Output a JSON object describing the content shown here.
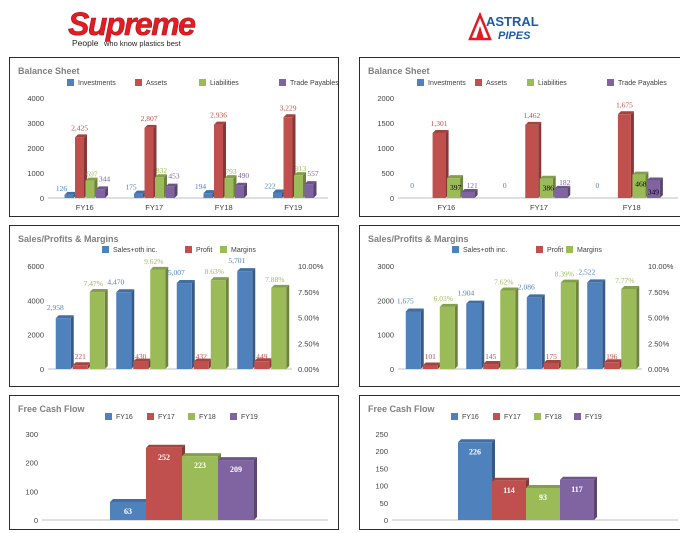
{
  "logos": {
    "supreme": {
      "name": "Supreme",
      "tagline_left": "People",
      "tagline_right": "who know plastics best",
      "color": "#e31b23"
    },
    "astral": {
      "line1": "ASTRAL",
      "line2": "PIPES",
      "color": "#1e5aa8",
      "accent": "#e31b23"
    }
  },
  "colors": {
    "blue": "#4f81bd",
    "red": "#c0504d",
    "green": "#9bbb59",
    "purple": "#8064a2",
    "title": "#7f7f7f"
  },
  "chart_data": [
    {
      "id": "supreme-balance",
      "type": "bar",
      "title": "Balance Sheet",
      "categories": [
        "FY16",
        "FY17",
        "FY18",
        "FY19"
      ],
      "series": [
        {
          "name": "Investments",
          "values": [
            126,
            175,
            194,
            222
          ]
        },
        {
          "name": "Assets",
          "values": [
            2425,
            2807,
            2936,
            3229
          ]
        },
        {
          "name": "Liabilities",
          "values": [
            697,
            832,
            793,
            913
          ]
        },
        {
          "name": "Trade Payables",
          "values": [
            344,
            453,
            490,
            557
          ]
        }
      ],
      "labels": [
        [
          "126",
          "175",
          "194",
          "222"
        ],
        [
          "2,425",
          "2,807",
          "2,936",
          "3,229"
        ],
        [
          "697",
          "832",
          "793",
          "913"
        ],
        [
          "344",
          "453",
          "490",
          "557"
        ]
      ],
      "ylim": [
        0,
        4000
      ],
      "ticks": [
        0,
        1000,
        2000,
        3000,
        4000
      ],
      "tick_labels": [
        "0",
        "1000",
        "2000",
        "3000",
        "4000"
      ]
    },
    {
      "id": "astral-balance",
      "type": "bar",
      "title": "Balance Sheet",
      "categories": [
        "FY16",
        "FY17",
        "FY18"
      ],
      "series": [
        {
          "name": "Investments",
          "values": [
            0,
            0,
            0
          ]
        },
        {
          "name": "Assets",
          "values": [
            1301,
            1462,
            1675
          ]
        },
        {
          "name": "Liabilities",
          "values": [
            397,
            386,
            468
          ]
        },
        {
          "name": "Trade Payables",
          "values": [
            121,
            182,
            349
          ]
        }
      ],
      "labels": [
        [
          "0",
          "0",
          "0"
        ],
        [
          "1,301",
          "1,462",
          "1,675"
        ],
        [
          "397",
          "386",
          "468"
        ],
        [
          "121",
          "182",
          "349"
        ]
      ],
      "ylim": [
        0,
        2000
      ],
      "ticks": [
        0,
        500,
        1000,
        1500,
        2000
      ],
      "tick_labels": [
        "0",
        "500",
        "1000",
        "1500",
        "2000"
      ]
    },
    {
      "id": "supreme-sales",
      "type": "bar",
      "title": "Sales/Profits & Margins",
      "categories": [
        "FY16",
        "FY17",
        "FY18",
        "FY19"
      ],
      "series": [
        {
          "name": "Sales+oth inc.",
          "values": [
            2958,
            4470,
            5007,
            5701
          ]
        },
        {
          "name": "Profit",
          "values": [
            221,
            430,
            432,
            449
          ]
        },
        {
          "name": "Margins",
          "values": [
            7.47,
            9.62,
            8.63,
            7.88
          ],
          "axis": "right"
        }
      ],
      "labels": [
        [
          "2,958",
          "4,470",
          "5,007",
          "5,701"
        ],
        [
          "221",
          "430",
          "432",
          "449"
        ],
        [
          "7.47%",
          "9.62%",
          "8.63%",
          "7.88%"
        ]
      ],
      "ylim": [
        0,
        6000
      ],
      "ticks": [
        0,
        2000,
        4000,
        6000
      ],
      "tick_labels": [
        "0",
        "2000",
        "4000",
        "6000"
      ],
      "y2lim": [
        0,
        10
      ],
      "y2ticks": [
        0,
        2.5,
        5,
        7.5,
        10
      ],
      "y2tick_labels": [
        "0.00%",
        "2.50%",
        "5.00%",
        "7.50%",
        "10.00%"
      ]
    },
    {
      "id": "astral-sales",
      "type": "bar",
      "title": "Sales/Profits & Margins",
      "categories": [
        "FY16",
        "FY17",
        "FY18",
        "FY19"
      ],
      "series": [
        {
          "name": "Sales+oth inc.",
          "values": [
            1675,
            1904,
            2086,
            2522
          ]
        },
        {
          "name": "Profit",
          "values": [
            101,
            145,
            175,
            196
          ]
        },
        {
          "name": "Margins",
          "values": [
            6.03,
            7.62,
            8.39,
            7.77
          ],
          "axis": "right"
        }
      ],
      "labels": [
        [
          "1,675",
          "1,904",
          "2,086",
          "2,522"
        ],
        [
          "101",
          "145",
          "175",
          "196"
        ],
        [
          "6.03%",
          "7.62%",
          "8.39%",
          "7.77%"
        ]
      ],
      "ylim": [
        0,
        3000
      ],
      "ticks": [
        0,
        1000,
        2000,
        3000
      ],
      "tick_labels": [
        "0",
        "1000",
        "2000",
        "3000"
      ],
      "y2lim": [
        0,
        10
      ],
      "y2ticks": [
        0,
        2.5,
        5,
        7.5,
        10
      ],
      "y2tick_labels": [
        "0.00%",
        "2.50%",
        "5.00%",
        "7.50%",
        "10.00%"
      ]
    },
    {
      "id": "supreme-fcf",
      "type": "bar",
      "title": "Free Cash Flow",
      "categories": [
        ""
      ],
      "series": [
        {
          "name": "FY16",
          "values": [
            63
          ]
        },
        {
          "name": "FY17",
          "values": [
            252
          ]
        },
        {
          "name": "FY18",
          "values": [
            223
          ]
        },
        {
          "name": "FY19",
          "values": [
            209
          ]
        }
      ],
      "labels": [
        [
          "63"
        ],
        [
          "252"
        ],
        [
          "223"
        ],
        [
          "209"
        ]
      ],
      "ylim": [
        0,
        300
      ],
      "ticks": [
        0,
        100,
        200,
        300
      ],
      "tick_labels": [
        "0",
        "100",
        "200",
        "300"
      ]
    },
    {
      "id": "astral-fcf",
      "type": "bar",
      "title": "Free Cash Flow",
      "categories": [
        ""
      ],
      "series": [
        {
          "name": "FY16",
          "values": [
            226
          ]
        },
        {
          "name": "FY17",
          "values": [
            114
          ]
        },
        {
          "name": "FY18",
          "values": [
            93
          ]
        },
        {
          "name": "FY19",
          "values": [
            117
          ]
        }
      ],
      "labels": [
        [
          "226"
        ],
        [
          "114"
        ],
        [
          "93"
        ],
        [
          "117"
        ]
      ],
      "ylim": [
        0,
        250
      ],
      "ticks": [
        0,
        50,
        100,
        150,
        200,
        250
      ],
      "tick_labels": [
        "0",
        "50",
        "100",
        "150",
        "200",
        "250"
      ]
    }
  ]
}
